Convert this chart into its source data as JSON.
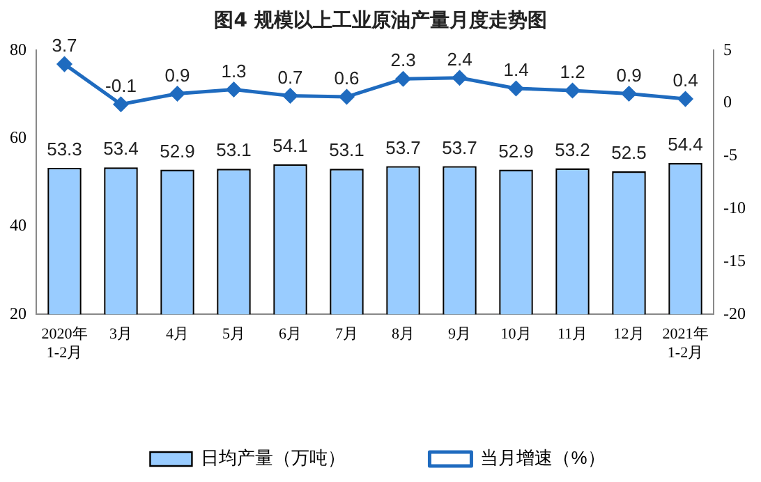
{
  "chart_data": {
    "type": "bar",
    "title": "图4  规模以上工业原油产量月度走势图",
    "categories": [
      "2020年\n1-2月",
      "3月",
      "4月",
      "5月",
      "6月",
      "7月",
      "8月",
      "9月",
      "10月",
      "11月",
      "12月",
      "2021年\n1-2月"
    ],
    "series": [
      {
        "name": "日均产量（万吨）",
        "color": "#99ccff",
        "values": [
          53.3,
          53.4,
          52.9,
          53.1,
          54.1,
          53.1,
          53.7,
          53.7,
          52.9,
          53.2,
          52.5,
          54.4
        ]
      },
      {
        "name": "当月增速（%）",
        "type": "line",
        "axis": "y2",
        "color": "#1f6bbf",
        "marker": "diamond",
        "values": [
          3.7,
          -0.1,
          0.9,
          1.3,
          0.7,
          0.6,
          2.3,
          2.4,
          1.4,
          1.2,
          0.9,
          0.4
        ]
      }
    ],
    "ylim": [
      20,
      80
    ],
    "yticks": [
      20,
      40,
      60,
      80
    ],
    "y2lim": [
      -20,
      5
    ],
    "y2ticks": [
      -20,
      -15,
      -10,
      -5,
      0,
      5
    ],
    "data_labels": true,
    "grid": false,
    "legend": "bottom"
  }
}
